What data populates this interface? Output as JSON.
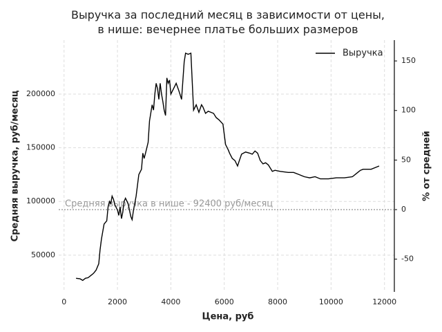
{
  "chart_data": {
    "type": "line",
    "title": "Выручка за последний месяц в зависимости от цены,\nв нише: вечернее платье больших размеров",
    "x_label": "Цена, руб",
    "y_label": "Средняя выручка, руб/месяц",
    "y2_label": "% от средней",
    "annotation": "Средняя выручка в нише - 92400 руб/месяц",
    "hline": 92400,
    "hline_color": "#999999",
    "legend": "upper right",
    "grid": true,
    "xlim": [
      -200,
      12370
    ],
    "ylim": [
      15800,
      250200
    ],
    "y2lim": [
      -83,
      171
    ],
    "xticks": [
      0,
      2000,
      4000,
      6000,
      8000,
      10000,
      12000
    ],
    "yticks": [
      50000,
      100000,
      150000,
      200000
    ],
    "y2ticks": [
      -50,
      0,
      50,
      100,
      150
    ],
    "series": [
      {
        "name": "Выручка",
        "color": "#000000",
        "x": [
          450,
          600,
          700,
          800,
          900,
          1000,
          1100,
          1200,
          1300,
          1350,
          1400,
          1500,
          1600,
          1650,
          1700,
          1750,
          1800,
          1850,
          1900,
          2000,
          2050,
          2100,
          2150,
          2200,
          2250,
          2300,
          2400,
          2500,
          2550,
          2600,
          2700,
          2800,
          2900,
          2950,
          3000,
          3050,
          3150,
          3200,
          3300,
          3350,
          3400,
          3450,
          3500,
          3550,
          3600,
          3650,
          3700,
          3750,
          3800,
          3850,
          3900,
          3950,
          4000,
          4100,
          4200,
          4300,
          4400,
          4500,
          4550,
          4650,
          4750,
          4850,
          4950,
          5050,
          5150,
          5200,
          5300,
          5400,
          5500,
          5600,
          5700,
          5800,
          5950,
          6050,
          6150,
          6200,
          6300,
          6400,
          6500,
          6550,
          6650,
          6800,
          6950,
          7050,
          7150,
          7250,
          7350,
          7450,
          7550,
          7650,
          7800,
          7900,
          8100,
          8400,
          8600,
          8800,
          9000,
          9200,
          9400,
          9600,
          9900,
          10200,
          10500,
          10800,
          11000,
          11100,
          11200,
          11500,
          11800
        ],
        "values": [
          28500,
          28000,
          26500,
          28500,
          29000,
          31000,
          33000,
          36000,
          42000,
          55000,
          65000,
          79000,
          82000,
          95000,
          100000,
          98000,
          105000,
          102000,
          97000,
          92000,
          87000,
          95000,
          84000,
          90000,
          100000,
          103000,
          98000,
          86000,
          83000,
          92000,
          105000,
          125000,
          130000,
          145000,
          140000,
          145000,
          155000,
          175000,
          190000,
          185000,
          200000,
          210000,
          205000,
          195000,
          210000,
          200000,
          193000,
          185000,
          180000,
          215000,
          210000,
          213000,
          200000,
          205000,
          210000,
          203000,
          195000,
          230000,
          238000,
          237000,
          238000,
          185000,
          190000,
          183000,
          190000,
          188000,
          182000,
          184000,
          183000,
          182000,
          178000,
          176000,
          172000,
          153000,
          148000,
          145000,
          140000,
          138000,
          133000,
          137000,
          144000,
          146000,
          145000,
          144000,
          147000,
          145000,
          138000,
          135000,
          136000,
          134000,
          128000,
          129000,
          128000,
          127000,
          127000,
          125000,
          123000,
          122000,
          123000,
          121000,
          121000,
          122000,
          122000,
          123000,
          127000,
          129000,
          130000,
          130000,
          133000
        ]
      }
    ]
  }
}
